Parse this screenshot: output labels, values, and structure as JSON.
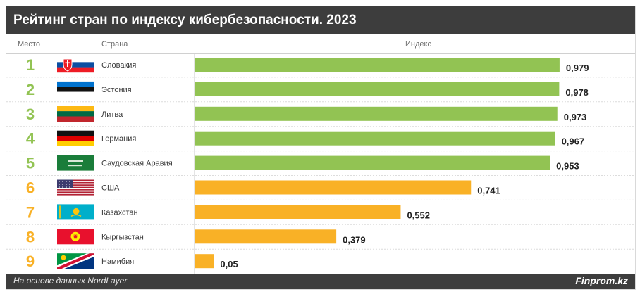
{
  "title": "Рейтинг стран по индексу кибербезопасности. 2023",
  "columns": {
    "rank": "Место",
    "country": "Страна",
    "index": "Индекс"
  },
  "footer": {
    "source": "На основе данных NordLayer",
    "brand": "Finprom.kz"
  },
  "colors": {
    "top_bar": "#92c353",
    "other_bar": "#f9b126",
    "top_rank": "#92c353",
    "other_rank": "#f9b126"
  },
  "chart_data": {
    "type": "bar",
    "orientation": "horizontal",
    "title": "Рейтинг стран по индексу кибербезопасности. 2023",
    "categories": [
      "Словакия",
      "Эстония",
      "Литва",
      "Германия",
      "Саудовская Аравия",
      "США",
      "Казахстан",
      "Кыргызстан",
      "Намибия"
    ],
    "ranks": [
      "1",
      "2",
      "3",
      "4",
      "5",
      "6",
      "7",
      "8",
      "9"
    ],
    "values": [
      0.979,
      0.978,
      0.973,
      0.967,
      0.953,
      0.741,
      0.552,
      0.379,
      0.05
    ],
    "value_labels": [
      "0,979",
      "0,978",
      "0,973",
      "0,967",
      "0,953",
      "0,741",
      "0,552",
      "0,379",
      "0,05"
    ],
    "flags": [
      "slovakia-flag",
      "estonia-flag",
      "lithuania-flag",
      "germany-flag",
      "saudi-arabia-flag",
      "usa-flag",
      "kazakhstan-flag",
      "kyrgyzstan-flag",
      "namibia-flag"
    ],
    "highlight_top": 5,
    "xlim": [
      0,
      1
    ],
    "grid": false
  }
}
